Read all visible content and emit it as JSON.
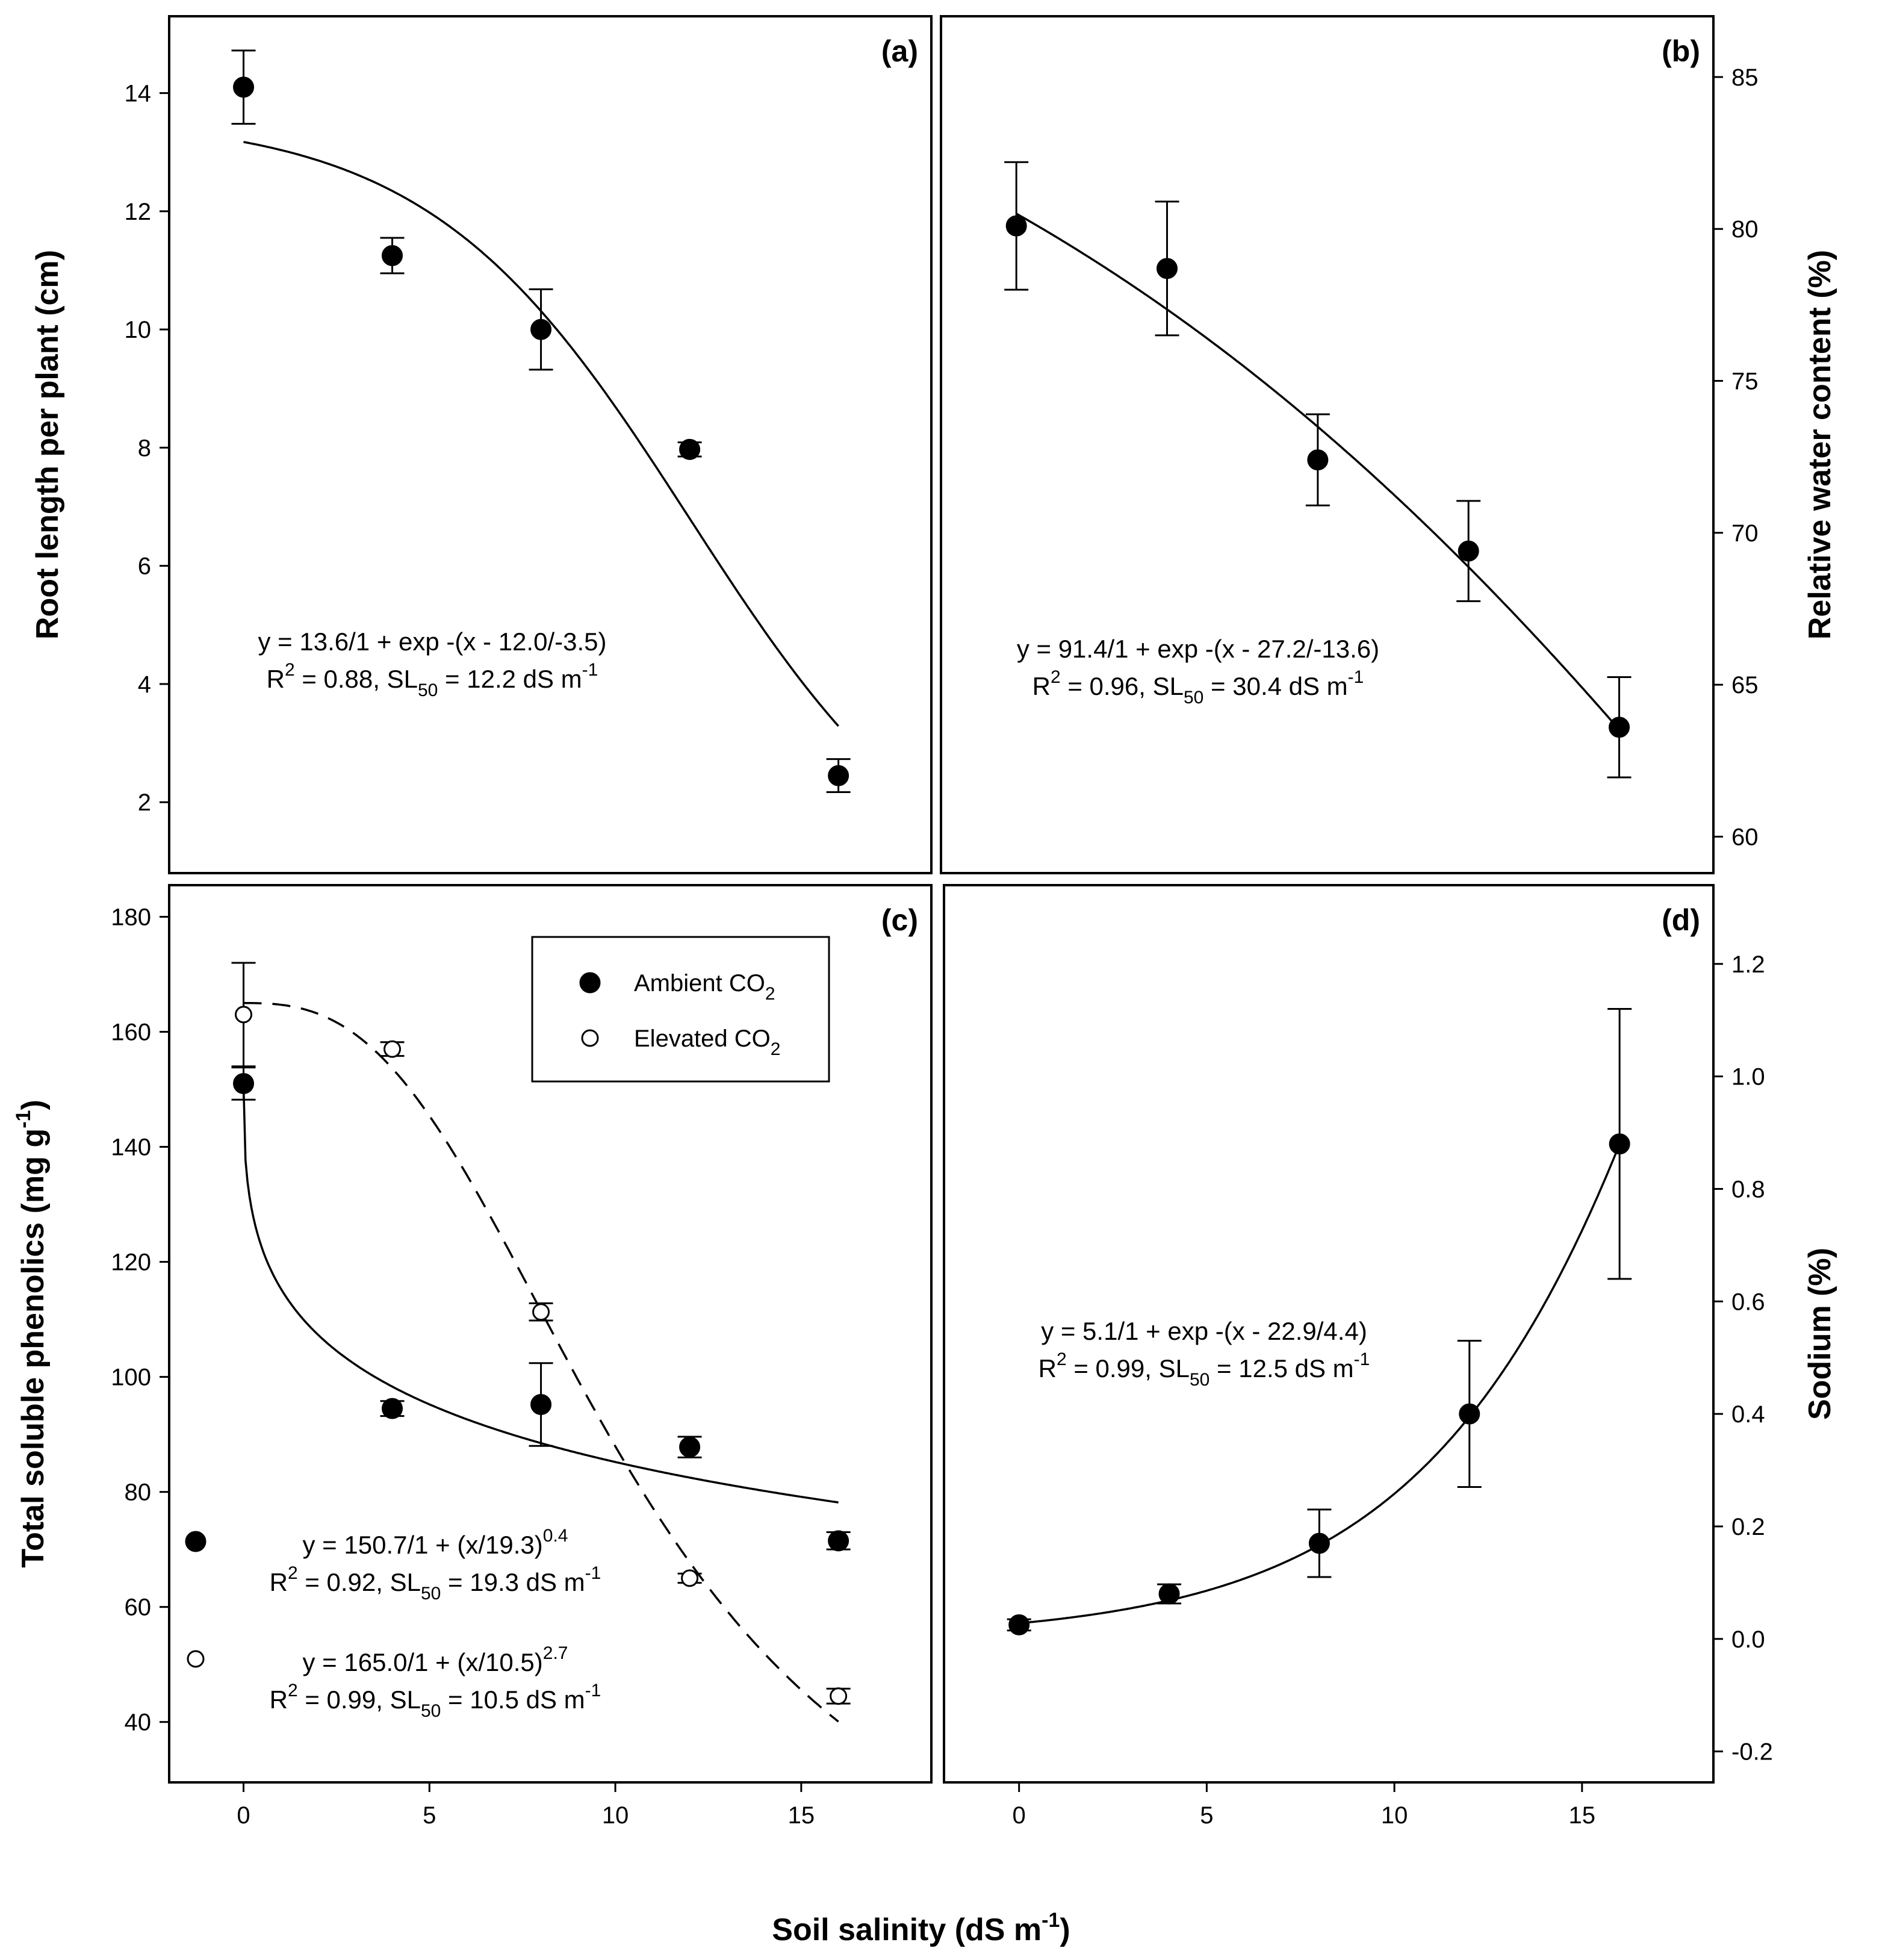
{
  "figure": {
    "xlabel": "Soil salinity (dS m",
    "xlabel_sup": "-1",
    "xlabel_end": ")"
  },
  "legend": [
    {
      "label": "Ambient CO",
      "sub": "2",
      "marker": "filled"
    },
    {
      "label": "Elevated CO",
      "sub": "2",
      "marker": "open"
    }
  ],
  "chart_data": [
    {
      "panel": "(a)",
      "type": "scatter",
      "ylabel": "Root length per plant (cm)",
      "xlim": [
        -2,
        18.5
      ],
      "ylim": [
        0.8,
        15.3
      ],
      "xticks": [
        0,
        5,
        10,
        15
      ],
      "yticks": [
        2,
        4,
        6,
        8,
        10,
        12,
        14
      ],
      "yaxis_side": "left",
      "series": [
        {
          "name": "Ambient CO2",
          "marker": "filled",
          "x": [
            0,
            4,
            8,
            12,
            16
          ],
          "y": [
            14.1,
            11.25,
            10.0,
            7.97,
            2.45
          ],
          "err": [
            0.62,
            0.3,
            0.68,
            0.12,
            0.28
          ],
          "fit": {
            "kind": "logistic",
            "a": 13.6,
            "x0": 12.0,
            "b": -3.5
          }
        }
      ],
      "equations": [
        {
          "line1": "y = 13.6/1 + exp -(x - 12.0/-3.5)",
          "r2": "= 0.88, SL",
          "tail": " = 12.2 dS m"
        }
      ]
    },
    {
      "panel": "(b)",
      "type": "scatter",
      "ylabel": "Relative water content (%)",
      "xlim": [
        -2,
        18.5
      ],
      "ylim": [
        58.8,
        87.0
      ],
      "xticks": [
        0,
        5,
        10,
        15
      ],
      "yticks": [
        60,
        65,
        70,
        75,
        80,
        85
      ],
      "yaxis_side": "right",
      "series": [
        {
          "name": "Ambient CO2",
          "marker": "filled",
          "x": [
            0,
            4,
            8,
            12,
            16
          ],
          "y": [
            80.1,
            78.7,
            72.4,
            69.4,
            63.6
          ],
          "err": [
            2.1,
            2.2,
            1.5,
            1.65,
            1.65
          ],
          "fit": {
            "kind": "logistic",
            "a": 91.4,
            "x0": 27.2,
            "b": -13.6
          }
        }
      ],
      "equations": [
        {
          "line1": "y = 91.4/1 + exp -(x - 27.2/-13.6)",
          "r2": "= 0.96, SL",
          "tail": " = 30.4 dS m"
        }
      ]
    },
    {
      "panel": "(c)",
      "type": "scatter",
      "ylabel": "Total soluble phenolics (mg g",
      "ylabel_sup": "-1",
      "ylabel_end": ")",
      "xlim": [
        -2,
        18.5
      ],
      "ylim": [
        29.5,
        185.5
      ],
      "xticks": [
        0,
        5,
        10,
        15
      ],
      "yticks": [
        40,
        60,
        80,
        100,
        120,
        140,
        160,
        180
      ],
      "yaxis_side": "left",
      "series": [
        {
          "name": "Ambient CO2",
          "marker": "filled",
          "x": [
            0,
            4,
            8,
            12,
            16
          ],
          "y": [
            151.0,
            94.5,
            95.2,
            87.8,
            71.5
          ],
          "err": [
            2.8,
            1.3,
            7.2,
            1.8,
            1.5
          ],
          "fit": {
            "kind": "power",
            "a": 150.7,
            "c": 19.3,
            "p": 0.4,
            "dash": false
          }
        },
        {
          "name": "Elevated CO2",
          "marker": "open",
          "x": [
            0,
            4,
            8,
            12,
            16
          ],
          "y": [
            163.0,
            157.0,
            111.3,
            65.0,
            44.5
          ],
          "err": [
            9.0,
            1.2,
            1.5,
            0.8,
            1.3
          ],
          "fit": {
            "kind": "power",
            "a": 165.0,
            "c": 10.5,
            "p": 2.7,
            "dash": true
          }
        }
      ],
      "equations": [
        {
          "marker": "filled",
          "line1": "y = 150.7/1 + (x/19.3)",
          "exp": "0.4",
          "r2": "= 0.92, SL",
          "tail": " = 19.3 dS m"
        },
        {
          "marker": "open",
          "line1": "y = 165.0/1 + (x/10.5)",
          "exp": "2.7",
          "r2": "= 0.99, SL",
          "tail": " = 10.5 dS m"
        }
      ]
    },
    {
      "panel": "(d)",
      "type": "scatter",
      "ylabel": "Sodium (%)",
      "xlim": [
        -2,
        18.5
      ],
      "ylim": [
        -0.255,
        1.34
      ],
      "xticks": [
        0,
        5,
        10,
        15
      ],
      "yticks": [
        -0.2,
        0.0,
        0.2,
        0.4,
        0.6,
        0.8,
        1.0,
        1.2
      ],
      "yaxis_side": "right",
      "series": [
        {
          "name": "Ambient CO2",
          "marker": "filled",
          "x": [
            0,
            4,
            8,
            12,
            16
          ],
          "y": [
            0.025,
            0.08,
            0.17,
            0.4,
            0.88
          ],
          "err": [
            0.01,
            0.017,
            0.06,
            0.13,
            0.24
          ],
          "fit": {
            "kind": "logistic",
            "a": 5.1,
            "x0": 22.9,
            "b": 4.4
          }
        }
      ],
      "equations": [
        {
          "line1": "y = 5.1/1 + exp -(x - 22.9/4.4)",
          "r2": "= 0.99, SL",
          "tail": " = 12.5 dS m"
        }
      ]
    }
  ]
}
